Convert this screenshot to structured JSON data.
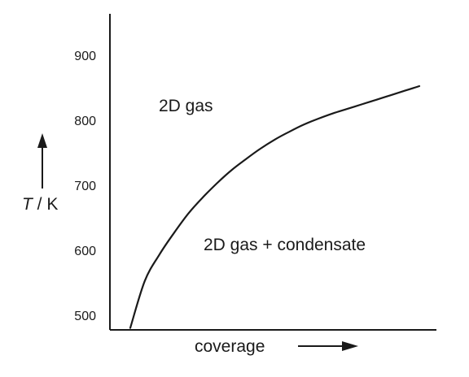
{
  "chart_data": {
    "type": "line",
    "title": "",
    "xlabel": "coverage",
    "ylabel": {
      "symbol": "T",
      "unit": " / K"
    },
    "ylim": [
      480,
      965
    ],
    "yticks": [
      "500",
      "600",
      "700",
      "800",
      "900"
    ],
    "xlim": [
      0,
      1
    ],
    "grid": false,
    "series": [
      {
        "x": [
          0.0,
          0.05,
          0.1,
          0.15,
          0.2,
          0.25,
          0.3,
          0.35,
          0.4,
          0.45,
          0.5,
          0.55,
          0.6,
          0.65,
          0.7,
          0.75,
          0.8,
          0.85,
          0.9,
          0.95,
          1.0
        ],
        "y": [
          483,
          555,
          595,
          628,
          658,
          683,
          705,
          725,
          742,
          758,
          772,
          784,
          795,
          804,
          812,
          819,
          826,
          833,
          840,
          847,
          854
        ]
      }
    ],
    "annotations": [
      {
        "text": "2D gas"
      },
      {
        "text": "2D gas + condensate"
      }
    ]
  }
}
